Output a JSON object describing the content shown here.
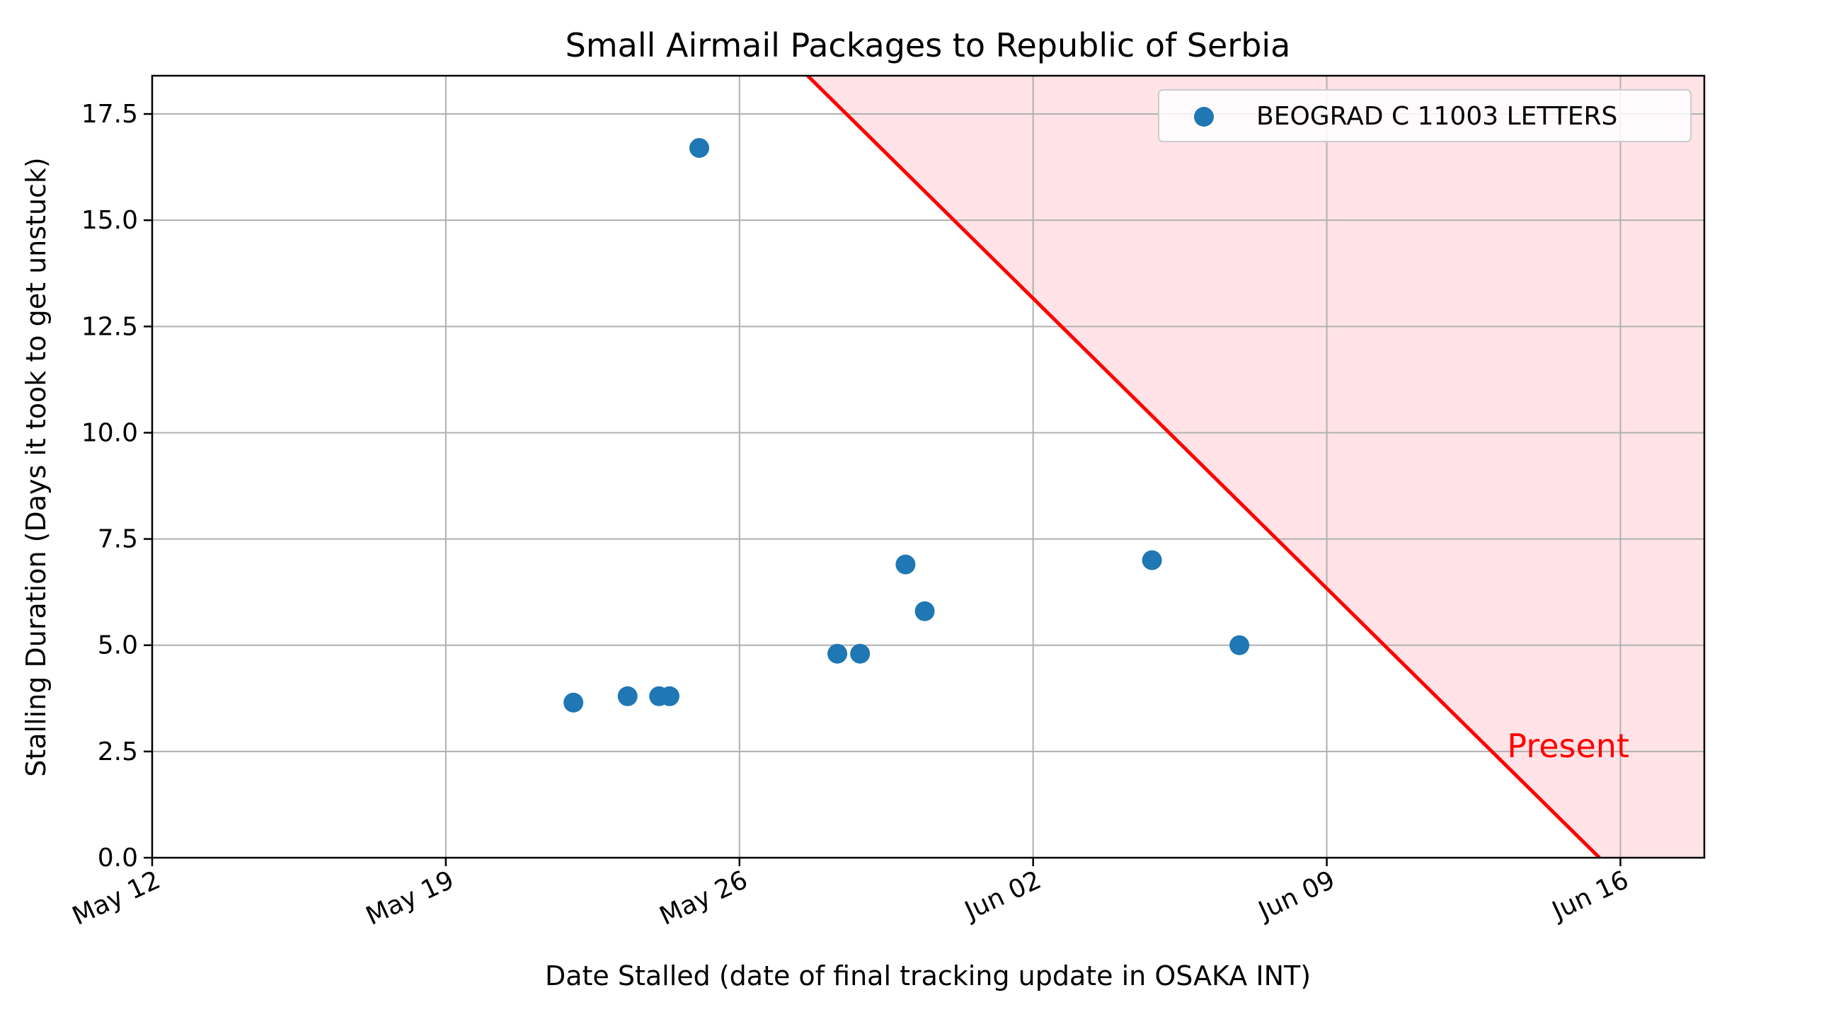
{
  "chart_data": {
    "type": "scatter",
    "title": "Small Airmail Packages to Republic of Serbia",
    "xlabel": "Date Stalled (date of final tracking update in OSAKA INT)",
    "ylabel": "Stalling Duration (Days it took to get unstuck)",
    "x_axis_type": "date",
    "xlim": [
      "2024-05-12",
      "2024-06-18"
    ],
    "ylim": [
      0,
      18.4
    ],
    "x_ticks": [
      {
        "date": "2024-05-12",
        "label": "May 12"
      },
      {
        "date": "2024-05-19",
        "label": "May 19"
      },
      {
        "date": "2024-05-26",
        "label": "May 26"
      },
      {
        "date": "2024-06-02",
        "label": "Jun 02"
      },
      {
        "date": "2024-06-09",
        "label": "Jun 09"
      },
      {
        "date": "2024-06-16",
        "label": "Jun 16"
      }
    ],
    "y_ticks": [
      {
        "value": 0.0,
        "label": "0.0"
      },
      {
        "value": 2.5,
        "label": "2.5"
      },
      {
        "value": 5.0,
        "label": "5.0"
      },
      {
        "value": 7.5,
        "label": "7.5"
      },
      {
        "value": 10.0,
        "label": "10.0"
      },
      {
        "value": 12.5,
        "label": "12.5"
      },
      {
        "value": 15.0,
        "label": "15.0"
      },
      {
        "value": 17.5,
        "label": "17.5"
      }
    ],
    "grid": true,
    "legend_position": "top-right",
    "series": [
      {
        "name": "BEOGRAD C 11003 LETTERS",
        "color": "#1f77b4",
        "points": [
          {
            "x": "2024-05-22T01:00",
            "y": 3.65
          },
          {
            "x": "2024-05-23T08:00",
            "y": 3.8
          },
          {
            "x": "2024-05-24T02:00",
            "y": 3.8
          },
          {
            "x": "2024-05-24T08:00",
            "y": 3.8
          },
          {
            "x": "2024-05-25T01:00",
            "y": 16.7
          },
          {
            "x": "2024-05-28T08:00",
            "y": 4.8
          },
          {
            "x": "2024-05-28T21:00",
            "y": 4.8
          },
          {
            "x": "2024-05-29T23:00",
            "y": 6.9
          },
          {
            "x": "2024-05-30T10:00",
            "y": 5.8
          },
          {
            "x": "2024-06-04T20:00",
            "y": 7.0
          },
          {
            "x": "2024-06-06T22:00",
            "y": 5.0
          }
        ]
      }
    ],
    "present_line": {
      "label": "Present",
      "color": "#ff0000",
      "fill_color": "#ffe3e6",
      "points": [
        {
          "x": "2024-05-27T15:00",
          "y": 18.4
        },
        {
          "x": "2024-06-15T12:00",
          "y": 0
        }
      ]
    }
  }
}
